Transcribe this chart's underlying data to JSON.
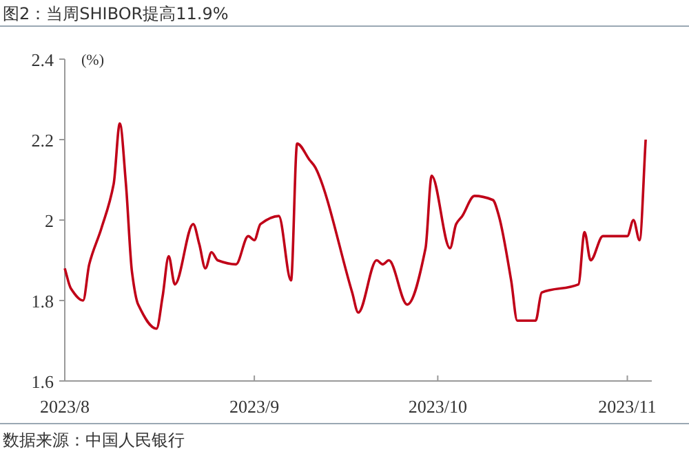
{
  "chart_data": {
    "type": "line",
    "title": "图2：当周SHIBOR提高11.9%",
    "ylabel": "(%)",
    "annotations": [
      "数据来源：中国人民银行"
    ],
    "x": [
      "2023-08-01",
      "2023-08-02",
      "2023-08-04",
      "2023-08-05",
      "2023-08-07",
      "2023-08-09",
      "2023-08-10",
      "2023-08-11",
      "2023-08-12",
      "2023-08-13",
      "2023-08-16",
      "2023-08-17",
      "2023-08-18",
      "2023-08-19",
      "2023-08-22",
      "2023-08-23",
      "2023-08-24",
      "2023-08-25",
      "2023-08-26",
      "2023-08-29",
      "2023-08-31",
      "2023-09-01",
      "2023-09-02",
      "2023-09-05",
      "2023-09-07",
      "2023-09-08",
      "2023-09-10",
      "2023-09-11",
      "2023-09-17",
      "2023-09-18",
      "2023-09-21",
      "2023-09-22",
      "2023-09-23",
      "2023-09-26",
      "2023-09-29",
      "2023-09-30",
      "2023-10-03",
      "2023-10-04",
      "2023-10-05",
      "2023-10-07",
      "2023-10-10",
      "2023-10-11",
      "2023-10-13",
      "2023-10-14",
      "2023-10-17",
      "2023-10-18",
      "2023-10-24",
      "2023-10-25",
      "2023-10-26",
      "2023-10-28",
      "2023-11-01",
      "2023-11-02",
      "2023-11-03",
      "2023-11-04"
    ],
    "series": [
      {
        "color": "#c00018",
        "values": [
          1.88,
          1.83,
          1.8,
          1.89,
          1.98,
          2.09,
          2.24,
          2.09,
          1.87,
          1.79,
          1.73,
          1.81,
          1.91,
          1.84,
          1.99,
          1.94,
          1.88,
          1.92,
          1.9,
          1.89,
          1.96,
          1.95,
          1.99,
          2.01,
          1.85,
          2.19,
          2.15,
          2.13,
          1.82,
          1.77,
          1.9,
          1.89,
          1.9,
          1.79,
          1.93,
          2.11,
          1.93,
          1.99,
          2.01,
          2.06,
          2.05,
          2.01,
          1.85,
          1.75,
          1.75,
          1.82,
          1.84,
          1.97,
          1.9,
          1.96,
          1.96,
          2.0,
          1.95,
          2.2
        ]
      }
    ],
    "xlim": [
      "2023-08-01",
      "2023-11-05"
    ],
    "xticks": [
      {
        "value": "2023-08-01",
        "label": "2023/8"
      },
      {
        "value": "2023-09-01",
        "label": "2023/9"
      },
      {
        "value": "2023-10-01",
        "label": "2023/10"
      },
      {
        "value": "2023-11-01",
        "label": "2023/11"
      }
    ],
    "ylim": [
      1.6,
      2.4
    ],
    "yticks": [
      1.6,
      1.8,
      2,
      2.2,
      2.4
    ],
    "grid": false,
    "marker": "none",
    "line_style": "solid"
  }
}
